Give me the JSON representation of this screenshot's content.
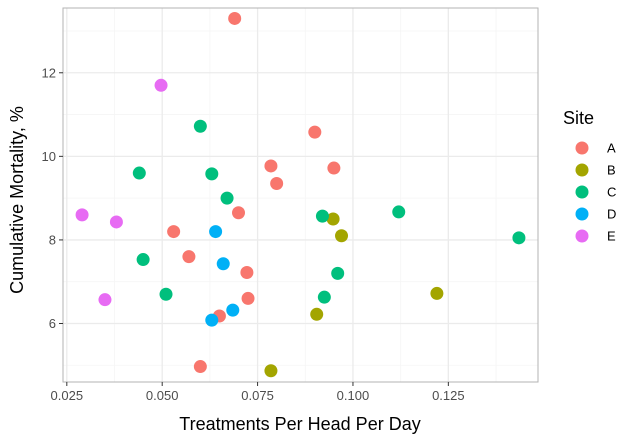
{
  "chart_data": {
    "type": "scatter",
    "title": "",
    "xlabel": "Treatments Per Head Per Day",
    "ylabel": "Cumulative Mortality, %",
    "xlim": [
      0.024,
      0.1485
    ],
    "ylim": [
      4.6,
      13.55
    ],
    "x_ticks": [
      0.025,
      0.05,
      0.075,
      0.1,
      0.125
    ],
    "x_tick_labels": [
      "0.025",
      "0.050",
      "0.075",
      "0.100",
      "0.125"
    ],
    "y_ticks": [
      6,
      8,
      10,
      12
    ],
    "y_tick_labels": [
      "6",
      "8",
      "10",
      "12"
    ],
    "grid": true,
    "legend": {
      "title": "Site",
      "position": "right"
    },
    "series": [
      {
        "name": "A",
        "color": "#F8766D",
        "points": [
          {
            "x": 0.069,
            "y": 13.3
          },
          {
            "x": 0.09,
            "y": 10.58
          },
          {
            "x": 0.0785,
            "y": 9.77
          },
          {
            "x": 0.095,
            "y": 9.72
          },
          {
            "x": 0.08,
            "y": 9.35
          },
          {
            "x": 0.07,
            "y": 8.65
          },
          {
            "x": 0.053,
            "y": 8.2
          },
          {
            "x": 0.057,
            "y": 7.6
          },
          {
            "x": 0.0722,
            "y": 7.22
          },
          {
            "x": 0.0725,
            "y": 6.6
          },
          {
            "x": 0.065,
            "y": 6.18
          },
          {
            "x": 0.06,
            "y": 4.97
          }
        ]
      },
      {
        "name": "B",
        "color": "#A3A500",
        "points": [
          {
            "x": 0.0948,
            "y": 8.5
          },
          {
            "x": 0.097,
            "y": 8.1
          },
          {
            "x": 0.122,
            "y": 6.72
          },
          {
            "x": 0.0905,
            "y": 6.22
          },
          {
            "x": 0.0785,
            "y": 4.87
          }
        ]
      },
      {
        "name": "C",
        "color": "#00BF7D",
        "points": [
          {
            "x": 0.06,
            "y": 10.72
          },
          {
            "x": 0.044,
            "y": 9.6
          },
          {
            "x": 0.063,
            "y": 9.58
          },
          {
            "x": 0.067,
            "y": 9.0
          },
          {
            "x": 0.112,
            "y": 8.67
          },
          {
            "x": 0.092,
            "y": 8.57
          },
          {
            "x": 0.1435,
            "y": 8.05
          },
          {
            "x": 0.045,
            "y": 7.53
          },
          {
            "x": 0.096,
            "y": 7.2
          },
          {
            "x": 0.051,
            "y": 6.7
          },
          {
            "x": 0.0925,
            "y": 6.63
          }
        ]
      },
      {
        "name": "D",
        "color": "#00B0F6",
        "points": [
          {
            "x": 0.064,
            "y": 8.2
          },
          {
            "x": 0.066,
            "y": 7.43
          },
          {
            "x": 0.0685,
            "y": 6.32
          },
          {
            "x": 0.063,
            "y": 6.08
          }
        ]
      },
      {
        "name": "E",
        "color": "#E76BF3",
        "points": [
          {
            "x": 0.0497,
            "y": 11.7
          },
          {
            "x": 0.029,
            "y": 8.6
          },
          {
            "x": 0.038,
            "y": 8.43
          },
          {
            "x": 0.035,
            "y": 6.57
          }
        ]
      }
    ]
  },
  "colors": {
    "panel_border": "#b3b3b3",
    "grid_major": "#ebebeb",
    "grid_minor": "#f5f5f5",
    "tick_text": "#4d4d4d"
  }
}
